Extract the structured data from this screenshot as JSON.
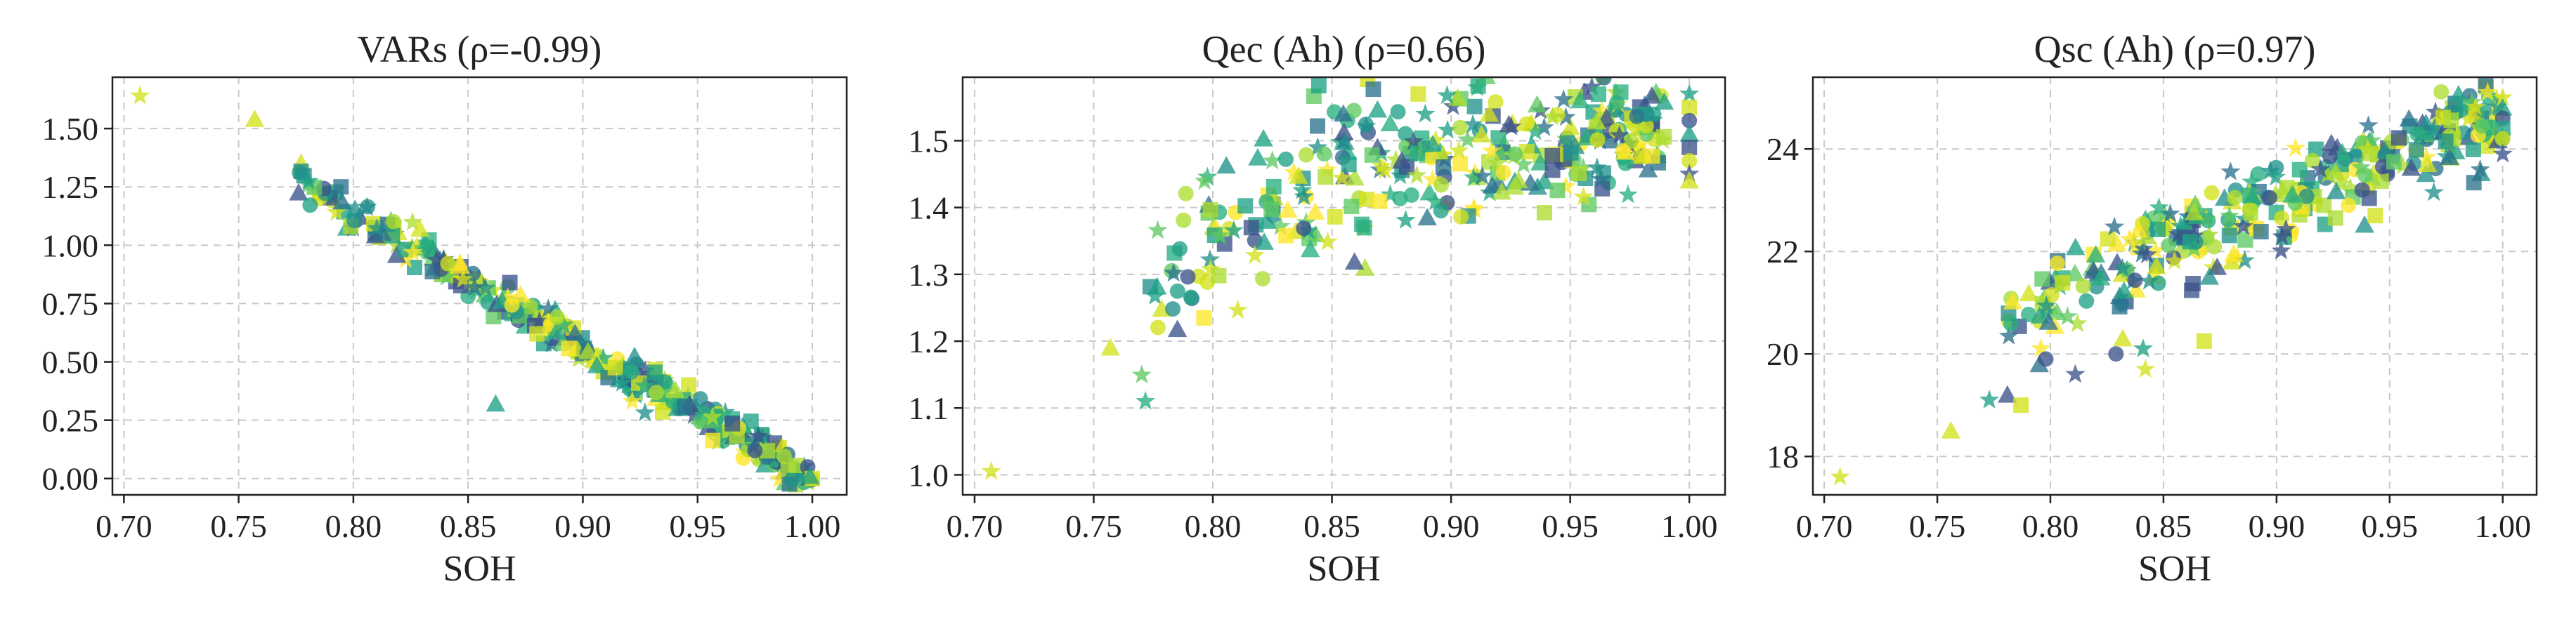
{
  "chart_data": [
    {
      "type": "scatter",
      "title": "VARs (ρ=-0.99)",
      "xlabel": "SOH",
      "ylabel": "",
      "xlim": [
        0.695,
        1.015
      ],
      "ylim": [
        -0.07,
        1.72
      ],
      "xticks": [
        0.7,
        0.75,
        0.8,
        0.85,
        0.9,
        0.95,
        1.0
      ],
      "xtick_labels": [
        "0.70",
        "0.75",
        "0.80",
        "0.85",
        "0.90",
        "0.95",
        "1.00"
      ],
      "yticks": [
        0.0,
        0.25,
        0.5,
        0.75,
        1.0,
        1.25,
        1.5
      ],
      "ytick_labels": [
        "0.00",
        "0.25",
        "0.50",
        "0.75",
        "1.00",
        "1.25",
        "1.50"
      ],
      "grid": true,
      "trend": {
        "type": "linear",
        "x0": 0.775,
        "y0": 1.28,
        "x1": 1.0,
        "y1": 0.0,
        "spread": 0.04
      },
      "points": [
        {
          "x": 0.707,
          "y": 1.64,
          "marker": "star",
          "color": "#d4e21a"
        },
        {
          "x": 0.757,
          "y": 1.54,
          "marker": "triangle",
          "color": "#d4e21a"
        },
        {
          "x": 0.862,
          "y": 0.32,
          "marker": "triangle",
          "color": "#1fa187"
        },
        {
          "x": 0.88,
          "y": 0.62,
          "marker": "square",
          "color": "#d4e21a"
        },
        {
          "x": 0.975,
          "y": 0.12,
          "marker": "circle",
          "color": "#3b528b"
        },
        {
          "x": 0.998,
          "y": 0.05,
          "marker": "circle",
          "color": "#3b528b"
        },
        {
          "x": 1.0,
          "y": 0.0,
          "marker": "square",
          "color": "#d4e21a"
        },
        {
          "x": 1.0,
          "y": 0.0,
          "marker": "circle",
          "color": "#d4e21a"
        },
        {
          "x": 0.999,
          "y": 0.01,
          "marker": "triangle",
          "color": "#1fa187"
        }
      ]
    },
    {
      "type": "scatter",
      "title": "Qec (Ah) (ρ=0.66)",
      "xlabel": "SOH",
      "ylabel": "",
      "xlim": [
        0.695,
        1.015
      ],
      "ylim": [
        0.97,
        1.595
      ],
      "xticks": [
        0.7,
        0.75,
        0.8,
        0.85,
        0.9,
        0.95,
        1.0
      ],
      "xtick_labels": [
        "0.70",
        "0.75",
        "0.80",
        "0.85",
        "0.90",
        "0.95",
        "1.00"
      ],
      "yticks": [
        1.0,
        1.1,
        1.2,
        1.3,
        1.4,
        1.5
      ],
      "ytick_labels": [
        "1.0",
        "1.1",
        "1.2",
        "1.3",
        "1.4",
        "1.5"
      ],
      "grid": true,
      "trend": {
        "type": "saturating",
        "x0": 0.77,
        "y0": 1.23,
        "x1": 0.99,
        "y1": 1.5,
        "spread": 0.07
      },
      "points": [
        {
          "x": 0.707,
          "y": 1.005,
          "marker": "star",
          "color": "#d4e21a"
        },
        {
          "x": 0.757,
          "y": 1.19,
          "marker": "triangle",
          "color": "#d4e21a"
        },
        {
          "x": 1.0,
          "y": 1.57,
          "marker": "star",
          "color": "#1fa187"
        },
        {
          "x": 1.0,
          "y": 1.55,
          "marker": "square",
          "color": "#d4e21a"
        },
        {
          "x": 1.0,
          "y": 1.53,
          "marker": "circle",
          "color": "#3b528b"
        },
        {
          "x": 1.0,
          "y": 1.51,
          "marker": "triangle",
          "color": "#1fa187"
        },
        {
          "x": 1.0,
          "y": 1.49,
          "marker": "square",
          "color": "#3b528b"
        },
        {
          "x": 1.0,
          "y": 1.47,
          "marker": "circle",
          "color": "#d4e21a"
        },
        {
          "x": 1.0,
          "y": 1.45,
          "marker": "star",
          "color": "#3b528b"
        },
        {
          "x": 1.0,
          "y": 1.44,
          "marker": "triangle",
          "color": "#d4e21a"
        }
      ]
    },
    {
      "type": "scatter",
      "title": "Qsc (Ah) (ρ=0.97)",
      "xlabel": "SOH",
      "ylabel": "",
      "xlim": [
        0.695,
        1.015
      ],
      "ylim": [
        17.25,
        25.4
      ],
      "xticks": [
        0.7,
        0.75,
        0.8,
        0.85,
        0.9,
        0.95,
        1.0
      ],
      "xtick_labels": [
        "0.70",
        "0.75",
        "0.80",
        "0.85",
        "0.90",
        "0.95",
        "1.00"
      ],
      "yticks": [
        18,
        20,
        22,
        24
      ],
      "ytick_labels": [
        "18",
        "20",
        "22",
        "24"
      ],
      "grid": true,
      "trend": {
        "type": "linear",
        "x0": 0.78,
        "y0": 20.8,
        "x1": 1.0,
        "y1": 24.7,
        "spread": 0.45
      },
      "points": [
        {
          "x": 0.707,
          "y": 17.6,
          "marker": "star",
          "color": "#d4e21a"
        },
        {
          "x": 0.756,
          "y": 18.5,
          "marker": "triangle",
          "color": "#d4e21a"
        },
        {
          "x": 0.773,
          "y": 19.1,
          "marker": "star",
          "color": "#1fa187"
        },
        {
          "x": 0.781,
          "y": 19.2,
          "marker": "triangle",
          "color": "#3b528b"
        },
        {
          "x": 0.787,
          "y": 19.0,
          "marker": "square",
          "color": "#d4e21a"
        },
        {
          "x": 0.798,
          "y": 19.9,
          "marker": "circle",
          "color": "#3b528b"
        },
        {
          "x": 0.811,
          "y": 19.6,
          "marker": "star",
          "color": "#3b528b"
        },
        {
          "x": 0.829,
          "y": 20.0,
          "marker": "circle",
          "color": "#3b528b"
        },
        {
          "x": 0.832,
          "y": 20.3,
          "marker": "triangle",
          "color": "#d4e21a"
        },
        {
          "x": 0.842,
          "y": 19.7,
          "marker": "star",
          "color": "#d4e21a"
        },
        {
          "x": 0.841,
          "y": 20.1,
          "marker": "star",
          "color": "#1fa187"
        },
        {
          "x": 0.868,
          "y": 20.25,
          "marker": "square",
          "color": "#d4e21a"
        },
        {
          "x": 1.0,
          "y": 25.0,
          "marker": "star",
          "color": "#d4e21a"
        },
        {
          "x": 1.0,
          "y": 24.8,
          "marker": "triangle",
          "color": "#1fa187"
        },
        {
          "x": 1.0,
          "y": 24.6,
          "marker": "circle",
          "color": "#3b528b"
        },
        {
          "x": 1.0,
          "y": 24.4,
          "marker": "square",
          "color": "#1fa187"
        },
        {
          "x": 1.0,
          "y": 24.2,
          "marker": "circle",
          "color": "#d4e21a"
        },
        {
          "x": 1.0,
          "y": 23.9,
          "marker": "star",
          "color": "#3b528b"
        }
      ]
    }
  ],
  "style": {
    "palette": [
      "#3b528b",
      "#2c728e",
      "#21918c",
      "#1fa187",
      "#28ae80",
      "#5ec962",
      "#addc30",
      "#d4e21a",
      "#fde725"
    ],
    "markers": [
      "circle",
      "square",
      "triangle",
      "star"
    ],
    "grid_color": "#c8c8c8",
    "axis_color": "#222222",
    "marker_opacity": 0.78
  }
}
